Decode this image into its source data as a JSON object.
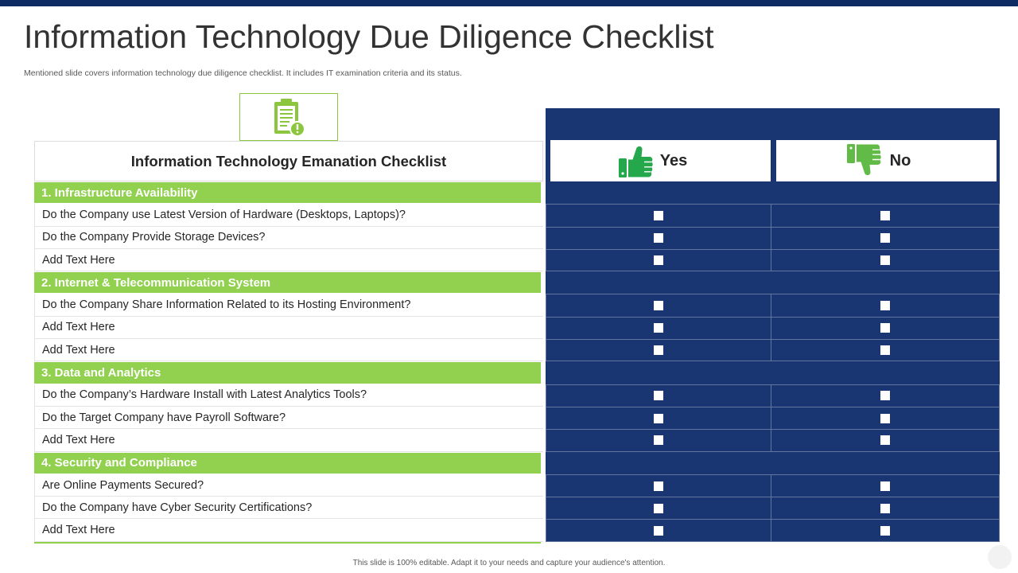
{
  "slide": {
    "title": "Information Technology Due Diligence Checklist",
    "subtitle": "Mentioned slide covers information technology due diligence checklist. It includes IT examination criteria and its status.",
    "footer": "This slide is 100% editable. Adapt it to your needs and capture your audience's attention."
  },
  "theme": {
    "navy": "#1a3672",
    "topbar": "#0e2b64",
    "green": "#92d050",
    "icon_green": "#8cc63f",
    "thumb_yes": "#24a84b",
    "thumb_no": "#62bb46"
  },
  "icons": {
    "header_badge": "clipboard-alert-icon",
    "yes": "thumbs-up-icon",
    "no": "thumbs-down-icon"
  },
  "checklist": {
    "header": "Information Technology Emanation Checklist",
    "columns": {
      "yes": "Yes",
      "no": "No"
    },
    "sections": [
      {
        "title": "1. Infrastructure Availability",
        "items": [
          {
            "text": "Do the Company use Latest Version of Hardware (Desktops, Laptops)?",
            "yes": false,
            "no": false
          },
          {
            "text": "Do the Company Provide Storage Devices?",
            "yes": false,
            "no": false
          },
          {
            "text": "Add Text Here",
            "yes": false,
            "no": false
          }
        ]
      },
      {
        "title": "2. Internet & Telecommunication System",
        "items": [
          {
            "text": "Do the Company Share Information Related to its Hosting Environment?",
            "yes": false,
            "no": false
          },
          {
            "text": "Add Text Here",
            "yes": false,
            "no": false
          },
          {
            "text": "Add Text Here",
            "yes": false,
            "no": false
          }
        ]
      },
      {
        "title": "3. Data and Analytics",
        "items": [
          {
            "text": "Do the Company’s Hardware Install with Latest Analytics Tools?",
            "yes": false,
            "no": false
          },
          {
            "text": "Do the Target Company have Payroll Software?",
            "yes": false,
            "no": false
          },
          {
            "text": "Add Text Here",
            "yes": false,
            "no": false
          }
        ]
      },
      {
        "title": "4. Security and Compliance",
        "items": [
          {
            "text": "Are Online Payments Secured?",
            "yes": false,
            "no": false
          },
          {
            "text": "Do the Company have Cyber Security Certifications?",
            "yes": false,
            "no": false
          },
          {
            "text": "Add Text Here",
            "yes": false,
            "no": false
          }
        ]
      }
    ]
  }
}
